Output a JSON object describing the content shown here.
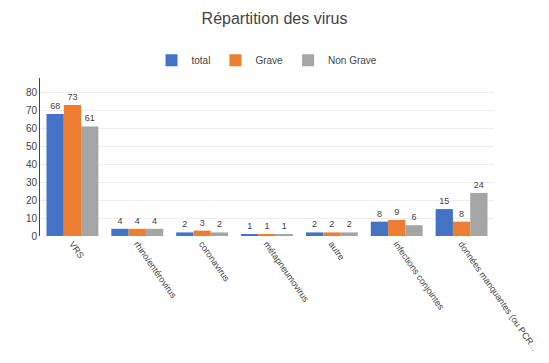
{
  "chart_data": {
    "type": "bar",
    "title": "Répartition des virus",
    "categories": [
      "VRS",
      "rhino/entérovirus",
      "coronavirus",
      "métapneumovirus",
      "autre",
      "infections conjointes",
      "données manquantes (ou PCR..."
    ],
    "series": [
      {
        "name": "total",
        "color": "#4472C4",
        "values": [
          68,
          4,
          2,
          1,
          2,
          8,
          15
        ]
      },
      {
        "name": "Grave",
        "color": "#ED7D31",
        "values": [
          73,
          4,
          3,
          1,
          2,
          9,
          8
        ]
      },
      {
        "name": "Non Grave",
        "color": "#A5A5A5",
        "values": [
          61,
          4,
          2,
          1,
          2,
          6,
          24
        ]
      }
    ],
    "ylim": [
      0,
      88
    ],
    "yticks": [
      0,
      10,
      20,
      30,
      40,
      50,
      60,
      70,
      80
    ],
    "grid": true,
    "legend": "top",
    "data_labels": true
  }
}
